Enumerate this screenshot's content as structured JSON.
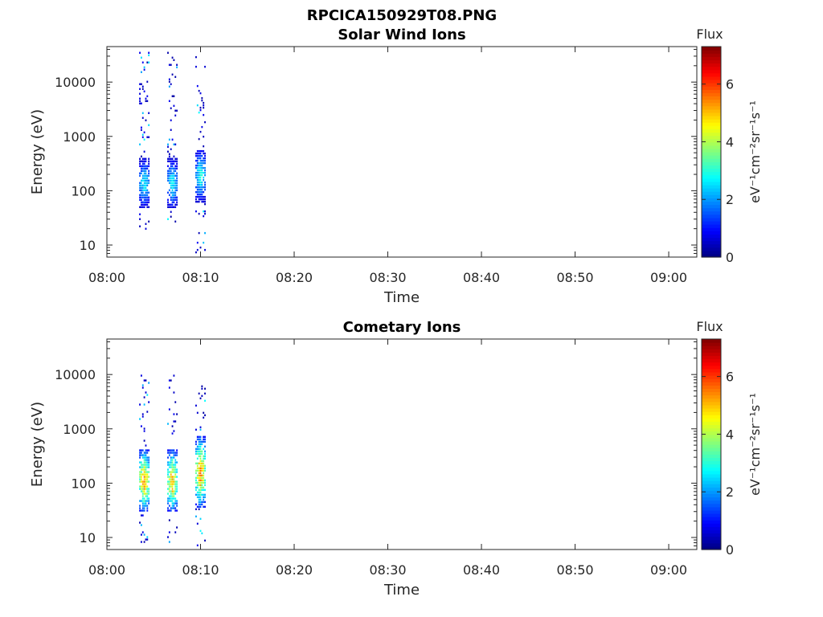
{
  "figure_title": "RPCICA150929T08.PNG",
  "chart_data": [
    {
      "type": "heatmap",
      "title": "Solar Wind Ions",
      "xlabel": "Time",
      "ylabel": "Energy (eV)",
      "y_scale": "log",
      "xlim": [
        "08:00",
        "09:03"
      ],
      "ylim": [
        6,
        45000
      ],
      "x_ticks": [
        "08:00",
        "08:10",
        "08:20",
        "08:30",
        "08:40",
        "08:50",
        "09:00"
      ],
      "y_ticks": [
        "10",
        "100",
        "1000",
        "10000"
      ],
      "colorbar": {
        "label": "Flux",
        "unit_label": "eV⁻¹cm⁻²sr⁻¹s⁻¹",
        "range": [
          0,
          7.3
        ],
        "ticks": [
          "0",
          "2",
          "4",
          "6"
        ],
        "colormap": "jet"
      },
      "bursts": [
        {
          "time": "08:04",
          "energy_range": [
            17,
            36000
          ],
          "core_energy_range": [
            60,
            300
          ],
          "max_flux": 2.8
        },
        {
          "time": "08:07",
          "energy_range": [
            25,
            36000
          ],
          "core_energy_range": [
            60,
            300
          ],
          "max_flux": 2.8
        },
        {
          "time": "08:10",
          "energy_range": [
            7,
            30000
          ],
          "core_energy_range": [
            80,
            450
          ],
          "max_flux": 3.0
        }
      ]
    },
    {
      "type": "heatmap",
      "title": "Cometary Ions",
      "xlabel": "Time",
      "ylabel": "Energy (eV)",
      "y_scale": "log",
      "xlim": [
        "08:00",
        "09:03"
      ],
      "ylim": [
        6,
        45000
      ],
      "x_ticks": [
        "08:00",
        "08:10",
        "08:20",
        "08:30",
        "08:40",
        "08:50",
        "09:00"
      ],
      "y_ticks": [
        "10",
        "100",
        "1000",
        "10000"
      ],
      "colorbar": {
        "label": "Flux",
        "unit_label": "eV⁻¹cm⁻²sr⁻¹s⁻¹",
        "range": [
          0,
          7.3
        ],
        "ticks": [
          "0",
          "2",
          "4",
          "6"
        ],
        "colormap": "jet"
      },
      "bursts": [
        {
          "time": "08:04",
          "energy_range": [
            7,
            11000
          ],
          "core_energy_range": [
            40,
            300
          ],
          "max_flux": 5.5
        },
        {
          "time": "08:07",
          "energy_range": [
            7,
            11000
          ],
          "core_energy_range": [
            40,
            300
          ],
          "max_flux": 5.3
        },
        {
          "time": "08:10",
          "energy_range": [
            7,
            7000
          ],
          "core_energy_range": [
            50,
            500
          ],
          "max_flux": 5.6
        }
      ]
    }
  ]
}
